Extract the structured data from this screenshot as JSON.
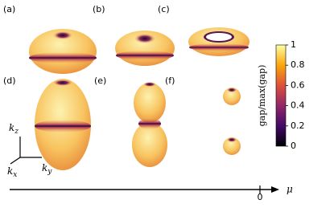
{
  "panels": [
    {
      "label": "(a)"
    },
    {
      "label": "(b)"
    },
    {
      "label": "(c)"
    },
    {
      "label": "(d)"
    },
    {
      "label": "(e)"
    },
    {
      "label": "(f)"
    }
  ],
  "colorbar": {
    "label": "gap/max(gap)",
    "lim": [
      0,
      1
    ],
    "ticks": [
      0,
      0.2,
      0.4,
      0.6,
      0.8,
      1
    ]
  },
  "momentum_axes": {
    "z": {
      "symbol": "k",
      "subscript": "z"
    },
    "y": {
      "symbol": "k",
      "subscript": "y"
    },
    "x": {
      "symbol": "k",
      "subscript": "x"
    }
  },
  "mu_axis": {
    "zero_label": "0",
    "label": "μ"
  }
}
